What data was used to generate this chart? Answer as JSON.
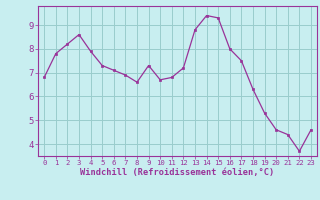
{
  "x": [
    0,
    1,
    2,
    3,
    4,
    5,
    6,
    7,
    8,
    9,
    10,
    11,
    12,
    13,
    14,
    15,
    16,
    17,
    18,
    19,
    20,
    21,
    22,
    23
  ],
  "y": [
    6.8,
    7.8,
    8.2,
    8.6,
    7.9,
    7.3,
    7.1,
    6.9,
    6.6,
    7.3,
    6.7,
    6.8,
    7.2,
    8.8,
    9.4,
    9.3,
    8.0,
    7.5,
    6.3,
    5.3,
    4.6,
    4.4,
    3.7,
    4.6
  ],
  "line_color": "#993399",
  "marker_color": "#993399",
  "bg_color": "#c8eef0",
  "grid_color": "#99cccc",
  "axis_color": "#993399",
  "xlabel": "Windchill (Refroidissement éolien,°C)",
  "ylim": [
    3.5,
    9.8
  ],
  "xlim": [
    -0.5,
    23.5
  ],
  "yticks": [
    4,
    5,
    6,
    7,
    8,
    9
  ],
  "xticks": [
    0,
    1,
    2,
    3,
    4,
    5,
    6,
    7,
    8,
    9,
    10,
    11,
    12,
    13,
    14,
    15,
    16,
    17,
    18,
    19,
    20,
    21,
    22,
    23
  ]
}
